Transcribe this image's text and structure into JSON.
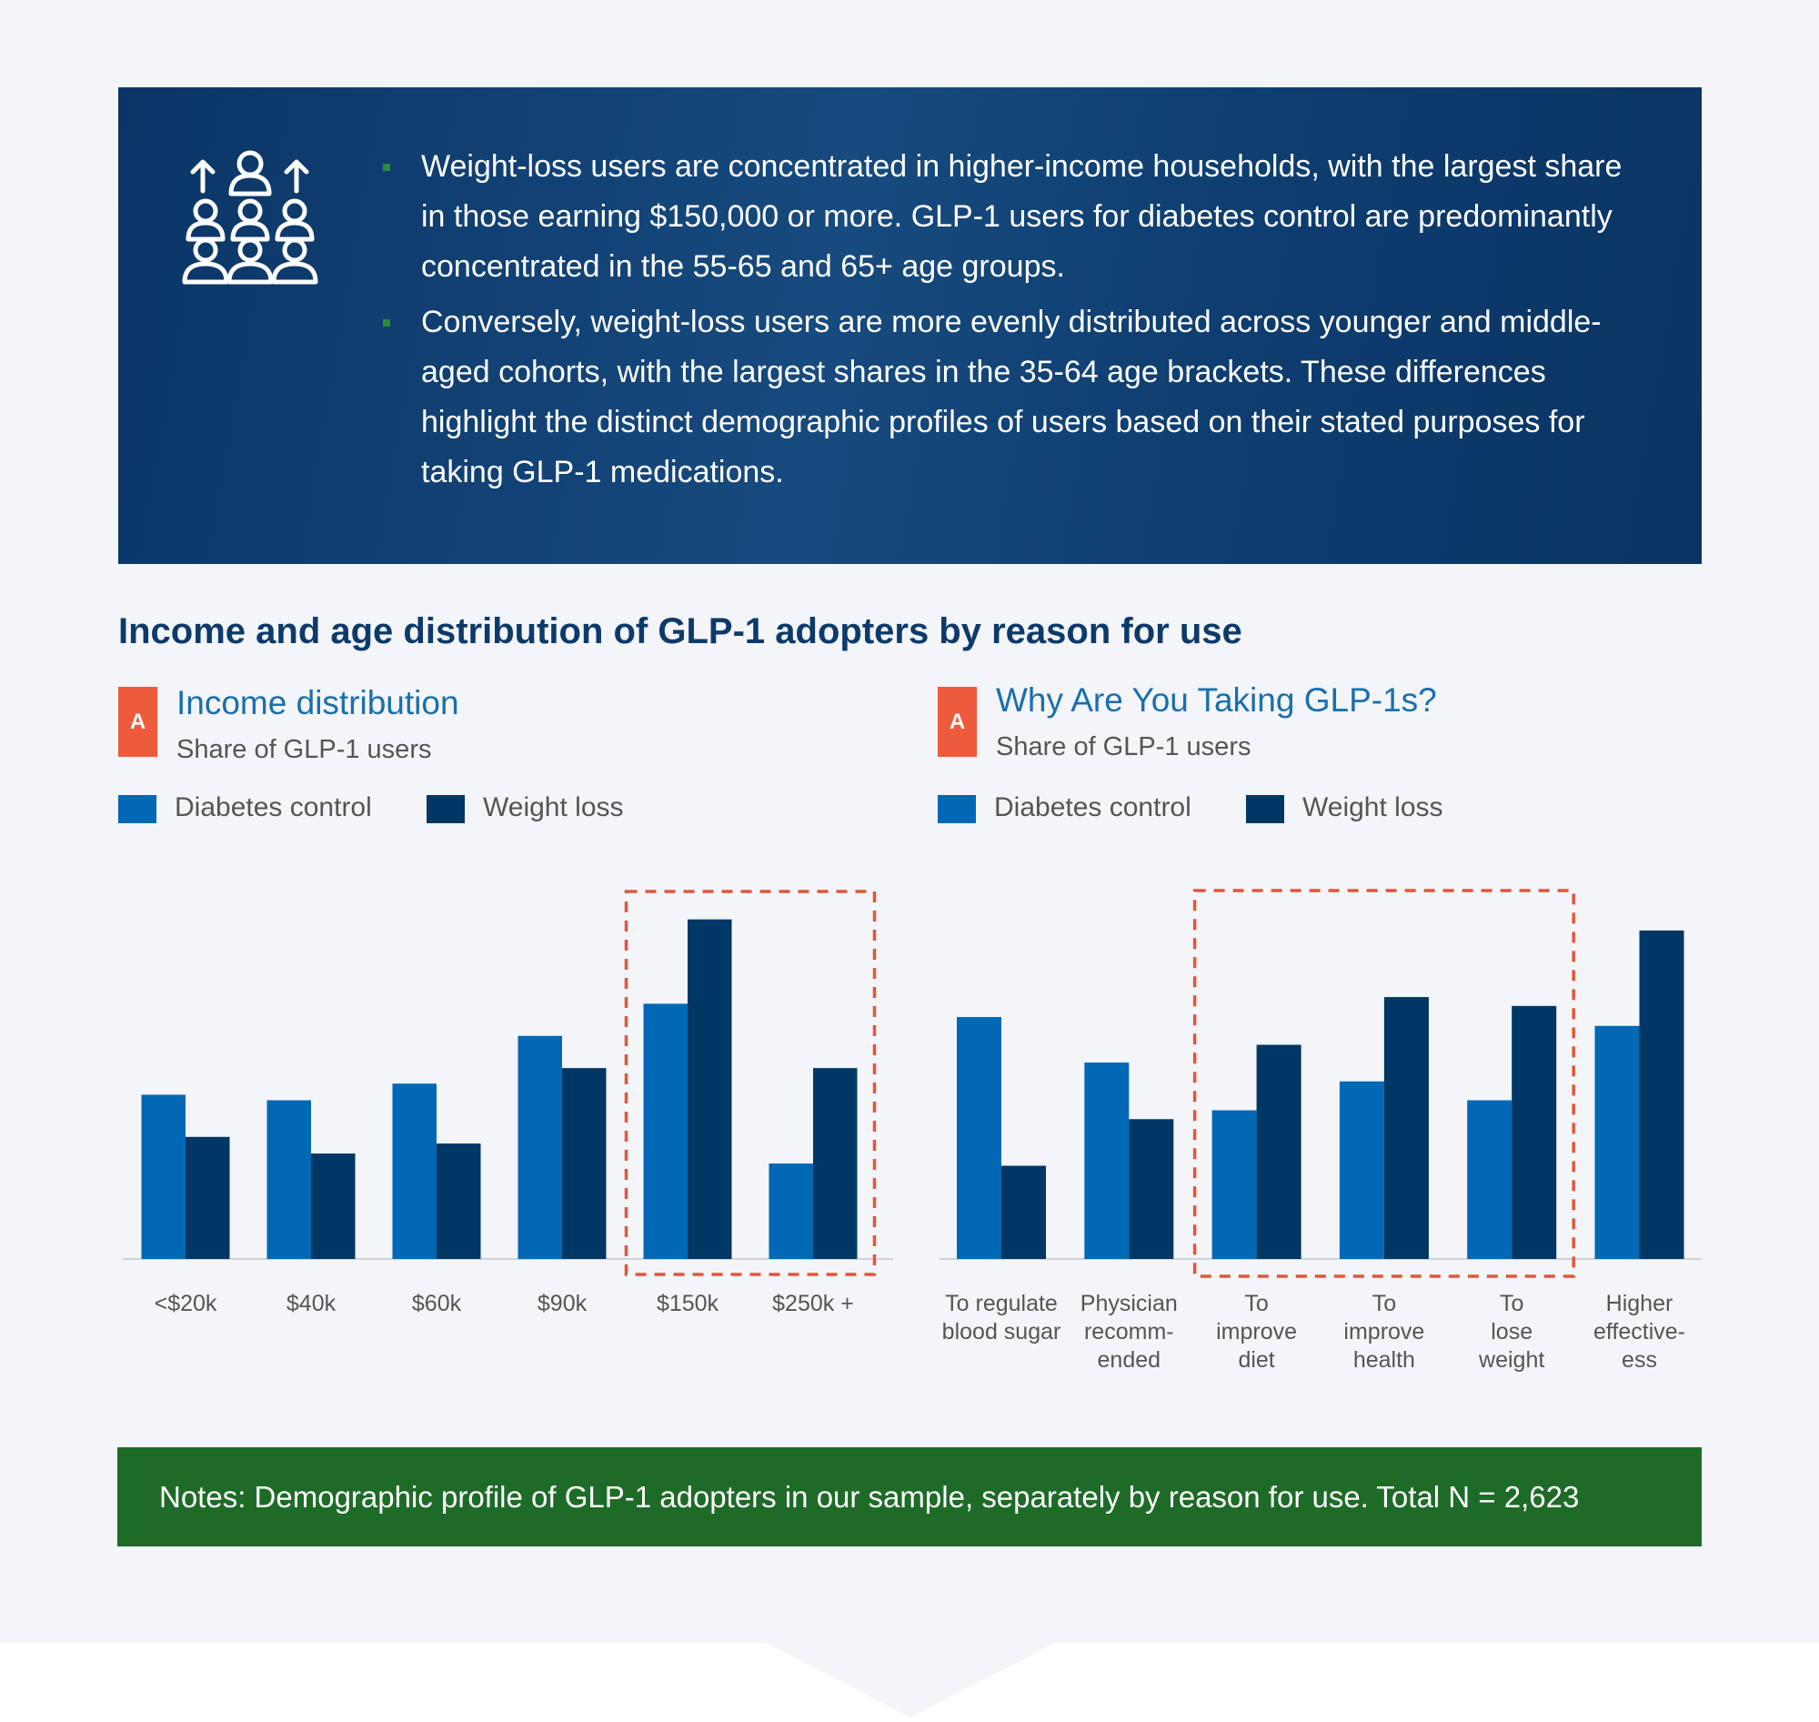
{
  "summary": {
    "bullets": [
      "Weight-loss users are concentrated in higher-income households, with the largest share in those earning $150,000 or more. GLP-1 users for diabetes control are predominantly concentrated in the 55-65 and 65+ age groups.",
      "Conversely, weight-loss users are more evenly distributed across younger and middle-aged cohorts, with the largest shares in the 35-64 age brackets. These differences highlight the distinct demographic profiles of users based on their stated purposes for taking GLP-1 medications."
    ]
  },
  "heading": "Income and age distribution of GLP-1 adopters by reason for use",
  "chart_data": [
    {
      "type": "bar",
      "badge": "A",
      "title": "Income distribution",
      "subtitle": "Share of GLP-1 users",
      "categories": [
        "<$20k",
        "$40k",
        "$60k",
        "$90k",
        "$150k",
        "$250k +"
      ],
      "series": [
        {
          "name": "Diabetes control",
          "color": "#0068b5",
          "values": [
            14.8,
            14.3,
            15.8,
            20.1,
            23.0,
            8.6
          ]
        },
        {
          "name": "Weight loss",
          "color": "#003764",
          "values": [
            11.0,
            9.5,
            10.4,
            17.2,
            30.6,
            17.2
          ]
        }
      ],
      "ylim": [
        0,
        35
      ]
    },
    {
      "type": "bar",
      "badge": "A",
      "title": "Why Are You Taking GLP-1s?",
      "subtitle": "Share of GLP-1 users",
      "categories": [
        "To regulate\nblood sugar",
        "Physician\nrecomm-\nended",
        "To\nimprove\ndiet",
        "To\nimprove\nhealth",
        "To\nlose\nweight",
        "Higher\neffective-\ness"
      ],
      "series": [
        {
          "name": "Diabetes control",
          "color": "#0068b5",
          "values": [
            21.8,
            17.7,
            13.4,
            16.0,
            14.3,
            21.0
          ]
        },
        {
          "name": "Weight loss",
          "color": "#003764",
          "values": [
            8.4,
            12.6,
            19.3,
            23.6,
            22.8,
            29.6
          ]
        }
      ],
      "ylim": [
        0,
        35
      ]
    }
  ],
  "notes": "Notes: Demographic profile of GLP-1 adopters in our sample, separately by reason for use. Total N = 2,623"
}
